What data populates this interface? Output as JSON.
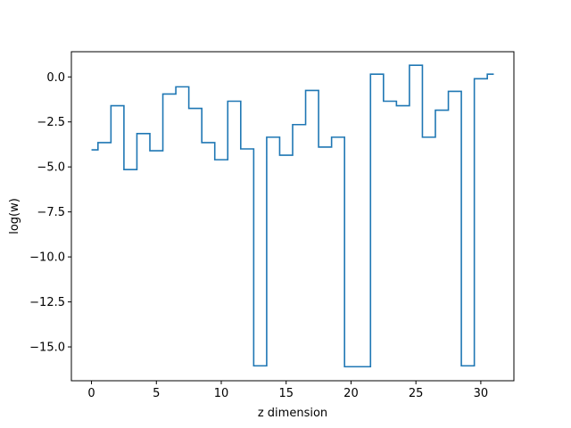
{
  "chart_data": {
    "type": "line",
    "drawstyle": "steps-mid",
    "title": "",
    "xlabel": "z dimension",
    "ylabel": "log(w)",
    "xlim": [
      -1.55,
      32.55
    ],
    "ylim": [
      -16.88,
      1.4
    ],
    "xticks": [
      0,
      5,
      10,
      15,
      20,
      25,
      30
    ],
    "xtick_labels": [
      "0",
      "5",
      "10",
      "15",
      "20",
      "25",
      "30"
    ],
    "yticks": [
      0.0,
      -2.5,
      -5.0,
      -7.5,
      -10.0,
      -12.5,
      -15.0
    ],
    "ytick_labels": [
      "0.0",
      "−2.5",
      "−5.0",
      "−7.5",
      "−10.0",
      "−12.5",
      "−15.0"
    ],
    "grid": false,
    "line_color": "#1f77b4",
    "series": [
      {
        "x": [
          0,
          1,
          2,
          3,
          4,
          5,
          6,
          7,
          8,
          9,
          10,
          11,
          12,
          13,
          14,
          15,
          16,
          17,
          18,
          19,
          20,
          21,
          22,
          23,
          24,
          25,
          26,
          27,
          28,
          29,
          30,
          31
        ],
        "values": [
          -4.05,
          -3.65,
          -1.6,
          -5.15,
          -3.15,
          -4.1,
          -0.95,
          -0.55,
          -1.75,
          -3.65,
          -4.6,
          -1.35,
          -4.0,
          -16.05,
          -3.35,
          -4.35,
          -2.65,
          -0.75,
          -3.9,
          -3.35,
          -16.1,
          -16.1,
          0.15,
          -1.35,
          -1.6,
          0.65,
          -3.35,
          -1.85,
          -0.8,
          -16.05,
          -0.1,
          0.15
        ]
      }
    ]
  }
}
